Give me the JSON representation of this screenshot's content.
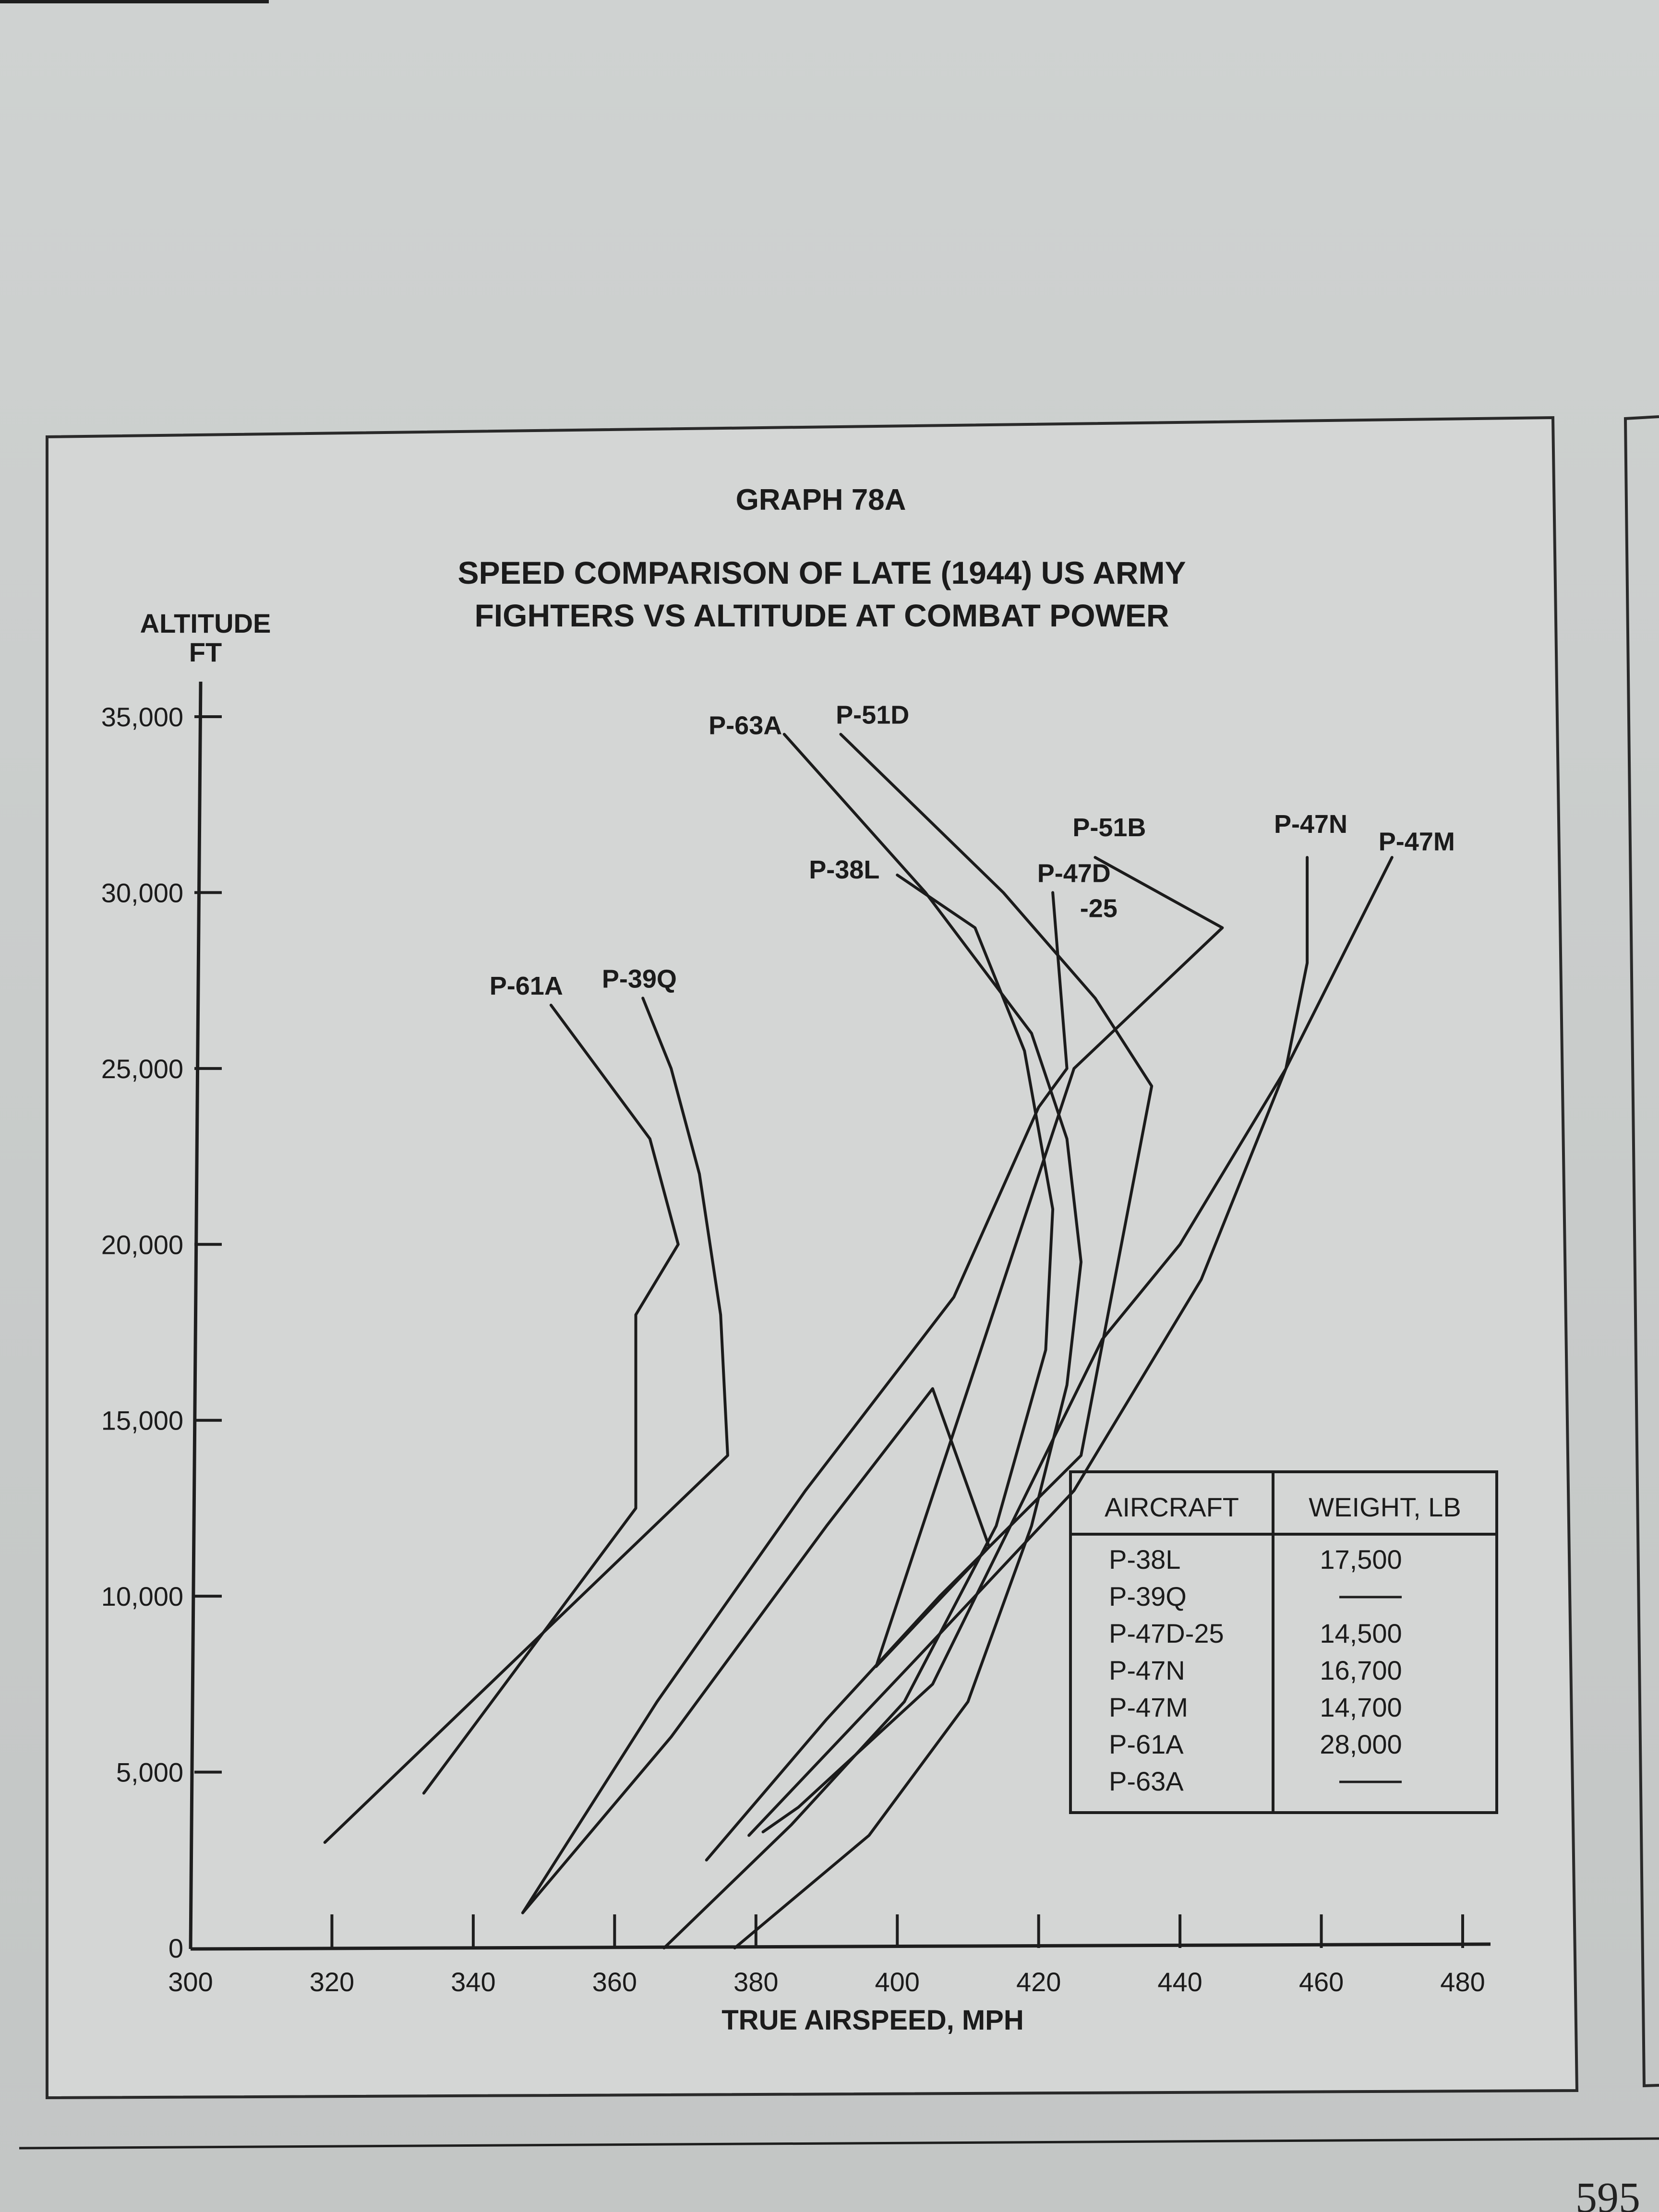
{
  "page_number": "595",
  "chart_data": {
    "type": "line",
    "graph_number": "GRAPH 78A",
    "title_lines": [
      "SPEED COMPARISON OF LATE (1944) US ARMY",
      "FIGHTERS VS ALTITUDE AT COMBAT POWER"
    ],
    "xlabel": "TRUE AIRSPEED, MPH",
    "ylabel_lines": [
      "ALTITUDE",
      "FT"
    ],
    "xlim": [
      300,
      480
    ],
    "ylim": [
      0,
      35000
    ],
    "x_ticks": [
      300,
      320,
      340,
      360,
      380,
      400,
      420,
      440,
      460,
      480
    ],
    "y_ticks": [
      0,
      5000,
      10000,
      15000,
      20000,
      25000,
      30000,
      35000
    ],
    "y_tick_labels": [
      "0",
      "5,000",
      "10,000",
      "15,000",
      "20,000",
      "25,000",
      "30,000",
      "35,000"
    ],
    "grid": false,
    "series": [
      {
        "name": "P-61A",
        "points": [
          [
            333,
            4400
          ],
          [
            363,
            12500
          ],
          [
            363,
            18000
          ],
          [
            369,
            20000
          ],
          [
            365,
            23000
          ],
          [
            351,
            26800
          ]
        ]
      },
      {
        "name": "P-39Q",
        "points": [
          [
            319,
            3000
          ],
          [
            376,
            14000
          ],
          [
            375,
            18000
          ],
          [
            372,
            22000
          ],
          [
            368,
            25000
          ],
          [
            364,
            27000
          ]
        ]
      },
      {
        "name": "P-38L",
        "points": [
          [
            367,
            0
          ],
          [
            385,
            3500
          ],
          [
            401,
            7000
          ],
          [
            414,
            12000
          ],
          [
            421,
            17000
          ],
          [
            422,
            21000
          ],
          [
            418,
            25500
          ],
          [
            411,
            29000
          ],
          [
            400,
            30500
          ]
        ]
      },
      {
        "name": "P-63A",
        "points": [
          [
            377,
            0
          ],
          [
            396,
            3200
          ],
          [
            410,
            7000
          ],
          [
            419,
            12000
          ],
          [
            424,
            16000
          ],
          [
            426,
            19500
          ],
          [
            424,
            23000
          ],
          [
            419,
            26000
          ],
          [
            404,
            30000
          ],
          [
            384,
            34500
          ]
        ]
      },
      {
        "name": "P-51D",
        "points": [
          [
            373,
            2500
          ],
          [
            390,
            6500
          ],
          [
            406,
            10000
          ],
          [
            426,
            14000
          ],
          [
            436,
            24500
          ],
          [
            428,
            27000
          ],
          [
            415,
            30000
          ],
          [
            392,
            34500
          ]
        ]
      },
      {
        "name": "P-51B",
        "points": [
          [
            347,
            1000
          ],
          [
            368,
            6000
          ],
          [
            390,
            12000
          ],
          [
            405,
            15900
          ],
          [
            413,
            11400
          ],
          [
            397,
            8000
          ],
          [
            425,
            25000
          ],
          [
            446,
            29000
          ],
          [
            428,
            31000
          ]
        ]
      },
      {
        "name": "P-47D-25",
        "points": [
          [
            347,
            1000
          ],
          [
            366,
            7000
          ],
          [
            387,
            13000
          ],
          [
            408,
            18500
          ],
          [
            420,
            23900
          ],
          [
            424,
            25000
          ],
          [
            422,
            30000
          ]
        ]
      },
      {
        "name": "P-47N",
        "points": [
          [
            379,
            3200
          ],
          [
            404,
            8500
          ],
          [
            425,
            13000
          ],
          [
            443,
            19000
          ],
          [
            455,
            25000
          ],
          [
            458,
            28000
          ],
          [
            458,
            31000
          ]
        ]
      },
      {
        "name": "P-47M",
        "points": [
          [
            381,
            3300
          ],
          [
            386,
            4000
          ],
          [
            405,
            7500
          ],
          [
            429,
            17300
          ],
          [
            440,
            20000
          ],
          [
            455,
            25000
          ],
          [
            470,
            31000
          ]
        ]
      }
    ],
    "annotations": [
      {
        "text": "P-61A",
        "x": 347.5,
        "y": 27100
      },
      {
        "text": "P-39Q",
        "x": 363.5,
        "y": 27300
      },
      {
        "text": "P-38L",
        "x": 392.5,
        "y": 30400
      },
      {
        "text": "P-63A",
        "x": 378.5,
        "y": 34500
      },
      {
        "text": "P-51D",
        "x": 396.5,
        "y": 34800
      },
      {
        "text": "P-51B",
        "x": 430.0,
        "y": 31600
      },
      {
        "text": "P-47D",
        "x": 425.0,
        "y": 30300
      },
      {
        "text": "-25",
        "x": 428.5,
        "y": 29300
      },
      {
        "text": "P-47N",
        "x": 458.5,
        "y": 31700
      },
      {
        "text": "P-47M",
        "x": 473.5,
        "y": 31200
      }
    ],
    "legend": {
      "placement": "bottom-right",
      "headers": [
        "AIRCRAFT",
        "WEIGHT, LB"
      ],
      "rows": [
        {
          "aircraft": "P-38L",
          "weight": "17,500"
        },
        {
          "aircraft": "P-39Q",
          "weight": ""
        },
        {
          "aircraft": "P-47D-25",
          "weight": "14,500"
        },
        {
          "aircraft": "P-47N",
          "weight": "16,700"
        },
        {
          "aircraft": "P-47M",
          "weight": "14,700"
        },
        {
          "aircraft": "P-61A",
          "weight": "28,000"
        },
        {
          "aircraft": "P-63A",
          "weight": ""
        }
      ]
    }
  }
}
